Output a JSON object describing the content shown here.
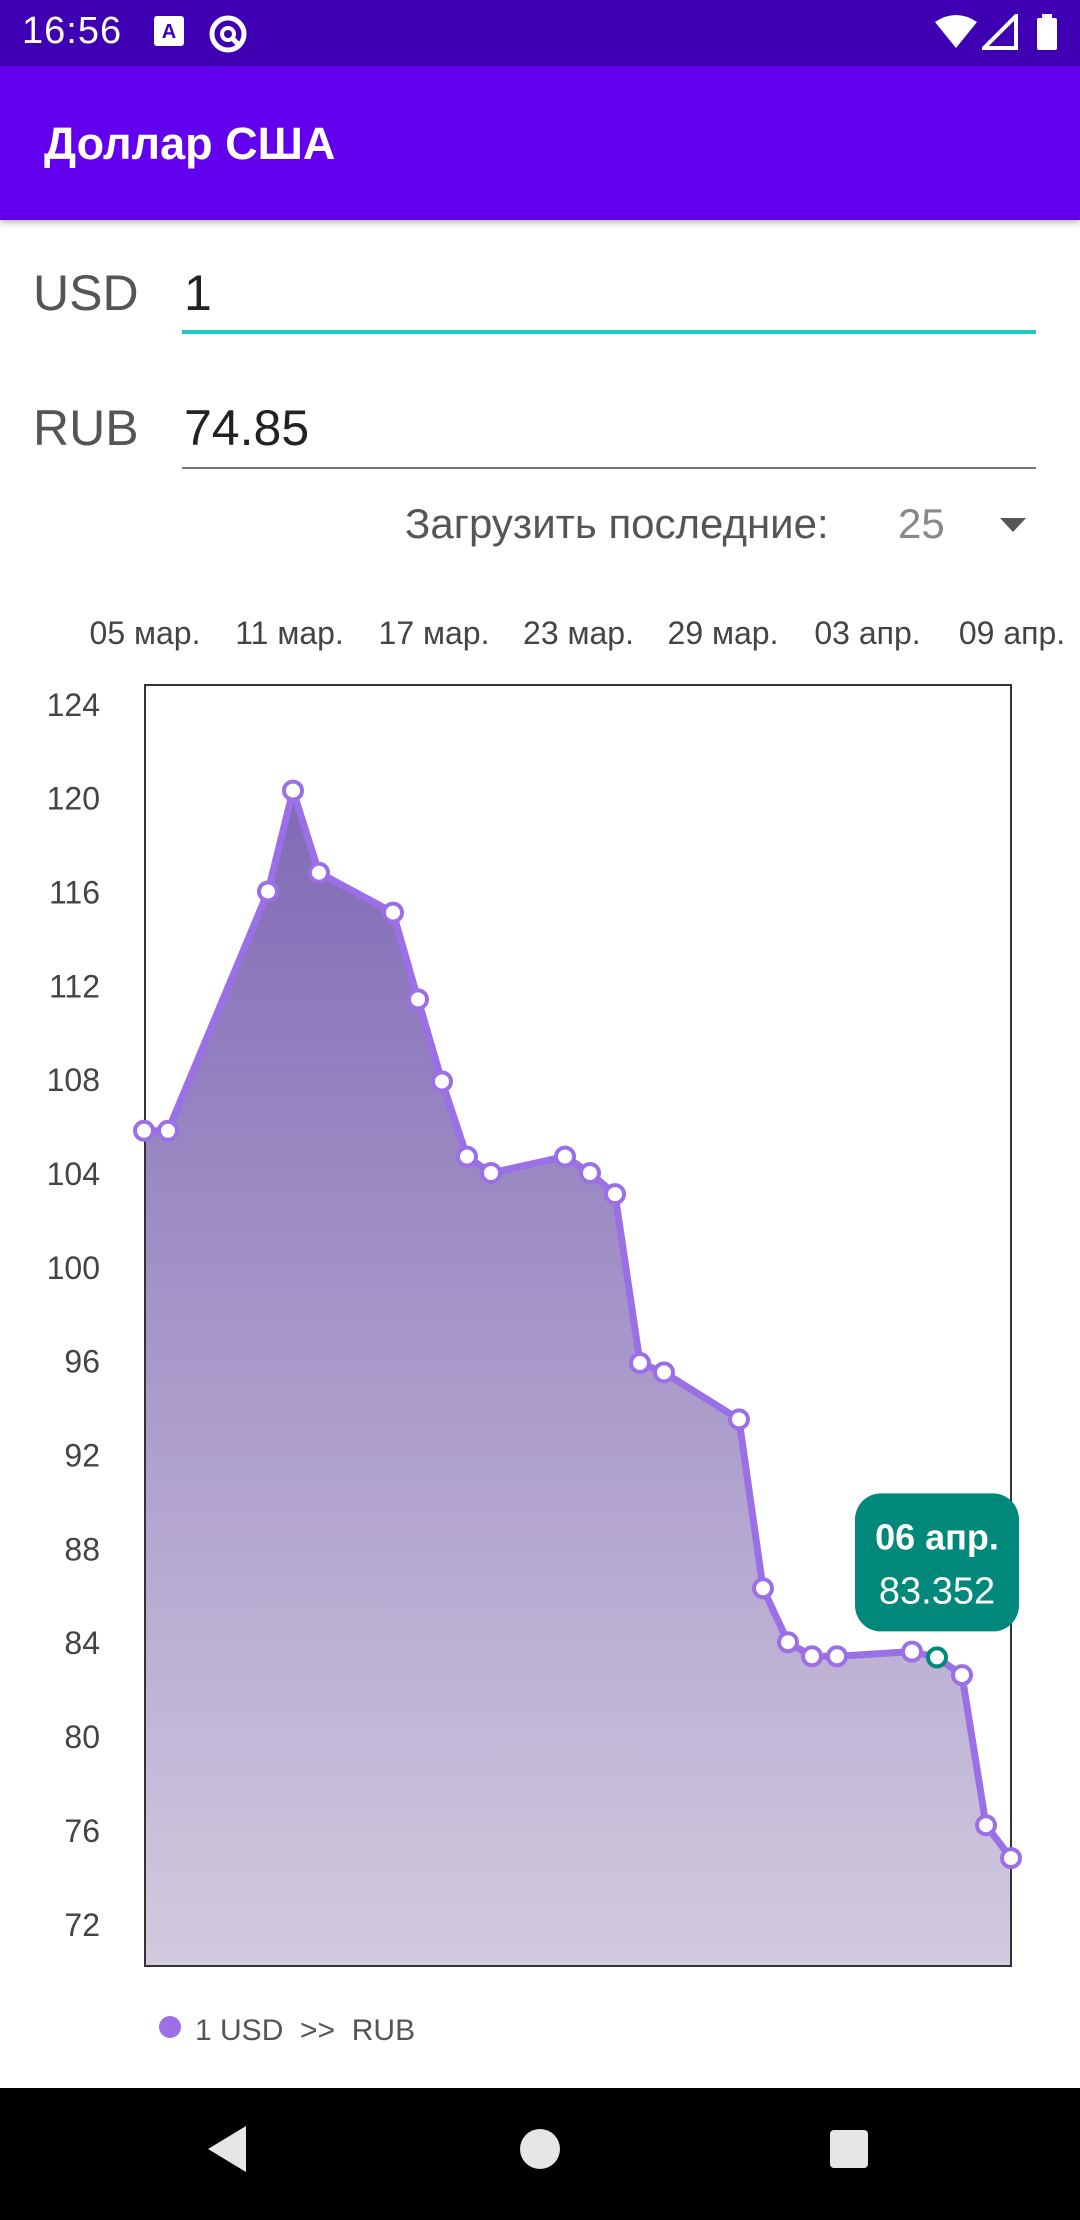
{
  "status_bar": {
    "time": "16:56",
    "left_icons": [
      "translate-notification-icon",
      "at-sign-notification-icon"
    ],
    "right_icons": [
      "wifi-icon",
      "signal-icon",
      "battery-icon"
    ]
  },
  "app_bar": {
    "title": "Доллар США"
  },
  "converter": {
    "from_currency": "USD",
    "from_value": "1",
    "to_currency": "RUB",
    "to_value": "74.85"
  },
  "load_control": {
    "label": "Загрузить последние:",
    "value": "25"
  },
  "tooltip": {
    "date": "06 апр.",
    "value": "83.352"
  },
  "colors": {
    "accent": "#6200ee",
    "line": "#9b6fe6",
    "tooltip": "#00897b",
    "field_focus": "#1fc8c0"
  },
  "chart_data": {
    "type": "area",
    "title": "",
    "xlabel": "",
    "ylabel": "",
    "x_tick_labels": [
      "05 мар.",
      "11 мар.",
      "17 мар.",
      "23 мар.",
      "29 мар.",
      "03 апр.",
      "09 апр."
    ],
    "y_ticks": [
      72,
      76,
      80,
      84,
      88,
      92,
      96,
      100,
      104,
      108,
      112,
      116,
      120,
      124
    ],
    "ylim": [
      70.2,
      124.8
    ],
    "grid": false,
    "legend_position": "bottom-left",
    "series": [
      {
        "name": "1 USD  >>  RUB",
        "values": [
          105.8,
          105.8,
          116.0,
          120.3,
          116.8,
          115.1,
          111.4,
          107.9,
          104.7,
          104.0,
          104.7,
          104.0,
          103.1,
          95.9,
          95.5,
          93.5,
          86.3,
          84.0,
          83.4,
          83.4,
          83.6,
          83.352,
          82.6,
          76.2,
          74.8
        ],
        "highlighted_index": 21
      }
    ]
  },
  "nav_bar": {
    "icons": [
      "back-icon",
      "home-icon",
      "recents-icon"
    ]
  }
}
